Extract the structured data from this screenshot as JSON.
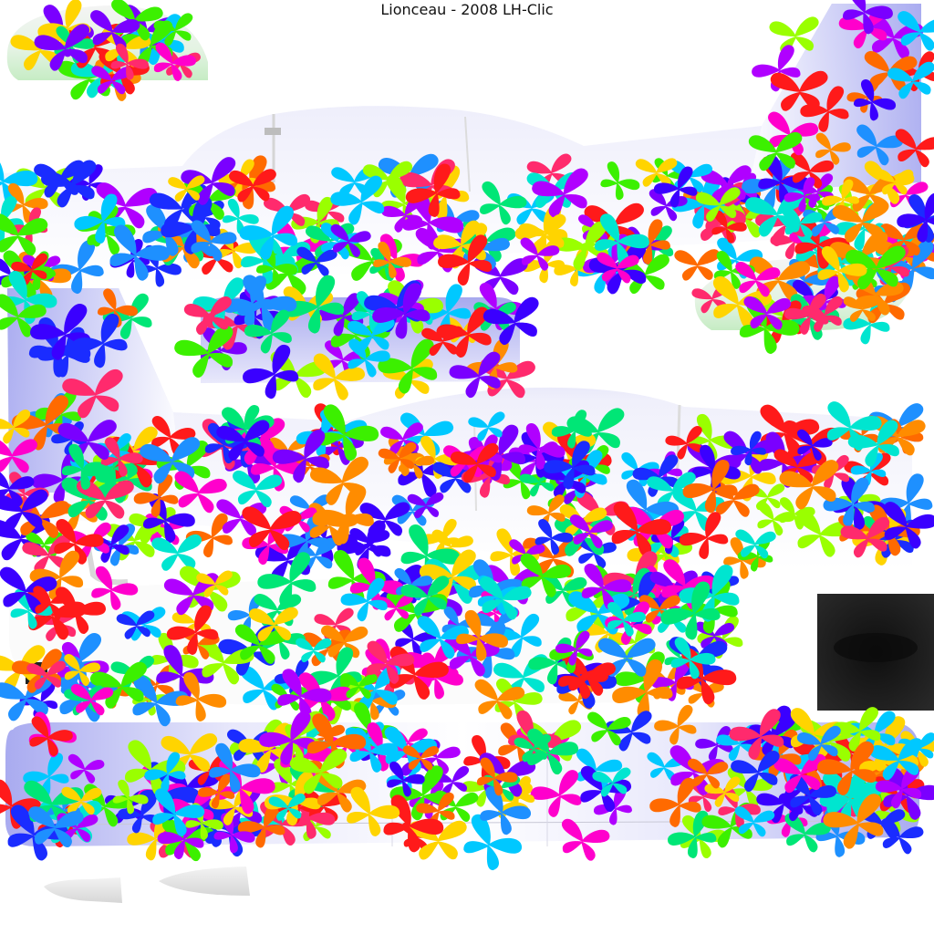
{
  "title": "Lionceau - 2008 LH-Clic",
  "colors": {
    "background": "#ffffff",
    "fuselage_white": "#f7f7fa",
    "fuselage_blue": "#a9abf0",
    "canopy_green": "#cdeecb",
    "black_patch": "#1e1e1e",
    "butterflies": [
      "#ff1a1a",
      "#ff2a6d",
      "#ff6a00",
      "#ff8c00",
      "#ffd400",
      "#9aff00",
      "#3cf000",
      "#00e676",
      "#00e5d0",
      "#00c8ff",
      "#1e90ff",
      "#1a2cff",
      "#3a00ff",
      "#7a00ff",
      "#b000ff",
      "#ff00cc"
    ]
  },
  "icons": {
    "butterfly": "butterfly-icon"
  }
}
